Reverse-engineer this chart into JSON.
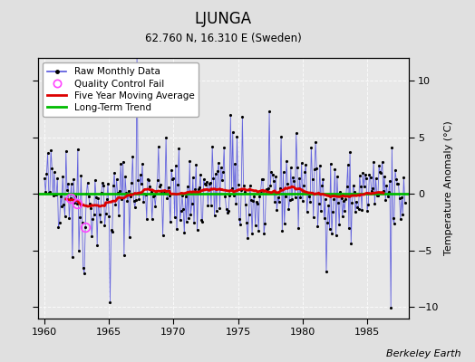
{
  "title": "LJUNGA",
  "subtitle": "62.760 N, 16.310 E (Sweden)",
  "ylabel": "Temperature Anomaly (°C)",
  "credit": "Berkeley Earth",
  "xlim": [
    1959.5,
    1988.2
  ],
  "ylim": [
    -11,
    12
  ],
  "yticks": [
    -10,
    -5,
    0,
    5,
    10
  ],
  "xticks": [
    1960,
    1965,
    1970,
    1975,
    1980,
    1985
  ],
  "bg_color": "#e0e0e0",
  "plot_bg_color": "#e8e8e8",
  "line_color": "#5555dd",
  "ma_color": "#dd0000",
  "trend_color": "#00bb00",
  "qc_color": "#ff44ff",
  "seed": 42,
  "start_year": 1960,
  "end_year": 1987,
  "qc_fail_indices": [
    24,
    30,
    38
  ]
}
